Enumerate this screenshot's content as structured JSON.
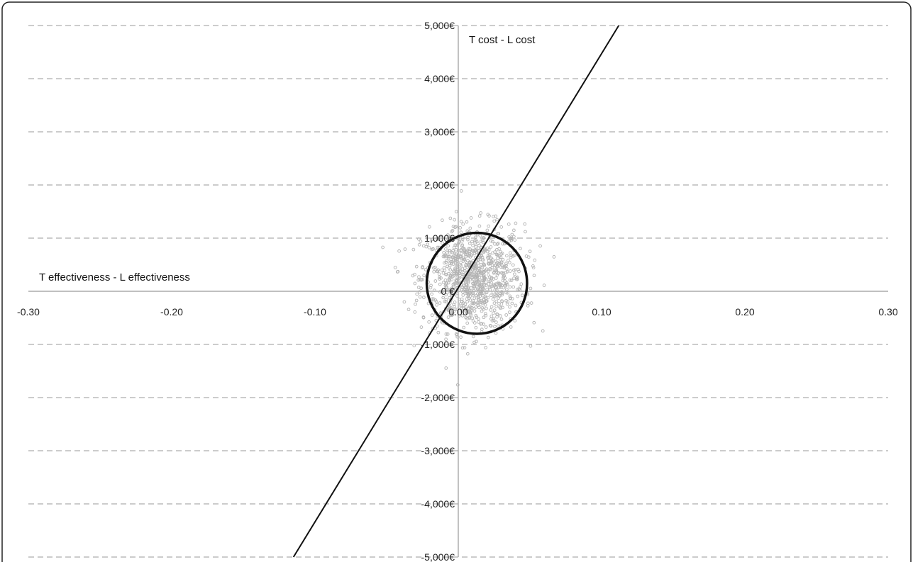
{
  "chart_data": {
    "type": "scatter",
    "x_axis_title": "T effectiveness - L effectiveness",
    "y_axis_title": "T cost - L cost",
    "xlim": [
      -0.3,
      0.3
    ],
    "ylim": [
      -5000,
      5000
    ],
    "x_ticks": [
      -0.3,
      -0.2,
      -0.1,
      0.0,
      0.1,
      0.2,
      0.3
    ],
    "x_tick_labels": [
      "-0.30",
      "-0.20",
      "-0.10",
      "0.00",
      "0.10",
      "0.20",
      "0.30"
    ],
    "y_ticks": [
      5000,
      4000,
      3000,
      2000,
      1000,
      0,
      -1000,
      -2000,
      -3000,
      -4000,
      -5000
    ],
    "y_tick_labels": [
      "5,000€",
      "4,000€",
      "3,000€",
      "2,000€",
      "1,000€",
      "0 €",
      "-1,000€",
      "-2,000€",
      "-3,000€",
      "-4,000€",
      "-5,000€"
    ],
    "grid": {
      "horizontal": true,
      "style": "dashed"
    },
    "threshold_line": {
      "x1": -0.115,
      "y1": -5000,
      "x2": 0.112,
      "y2": 5000
    },
    "confidence_ellipse": {
      "cx": 0.013,
      "cy": 150,
      "rx": 0.035,
      "ry": 950
    },
    "scatter_cloud": {
      "mean_x": 0.01,
      "mean_y": 250,
      "sd_x": 0.018,
      "sd_y": 500,
      "n": 1000
    },
    "colors": {
      "points": "#b3b3b3",
      "line": "#111111",
      "ellipse": "#111111",
      "grid": "#9a9a9a",
      "axis": "#9a9a9a"
    }
  }
}
